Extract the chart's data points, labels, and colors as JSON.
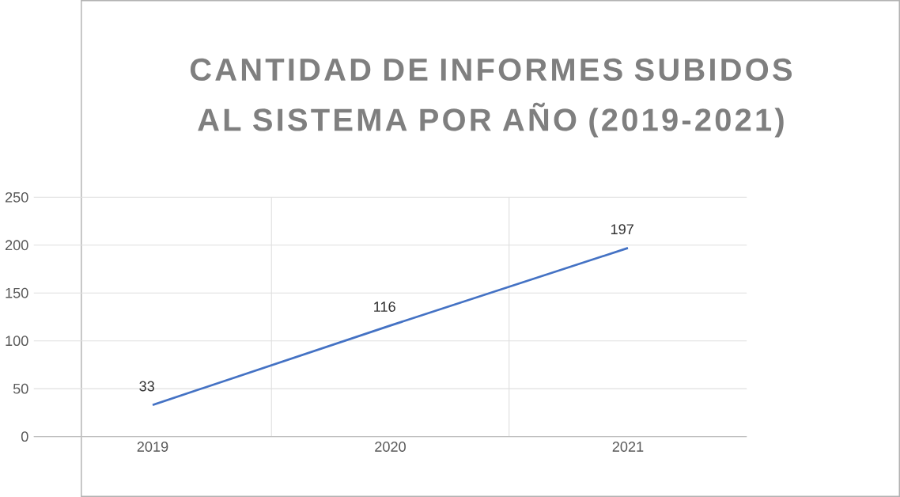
{
  "chart_data": {
    "type": "line",
    "title": "CANTIDAD DE INFORMES SUBIDOS AL SISTEMA POR AÑO (2019-2021)",
    "categories": [
      "2019",
      "2020",
      "2021"
    ],
    "series": [
      {
        "color": "#4472c4",
        "values": [
          33,
          116,
          197
        ]
      }
    ],
    "ylim": [
      0,
      250
    ],
    "yticks": [
      0,
      50,
      100,
      150,
      200,
      250
    ],
    "grid": true,
    "data_labels": true,
    "marker": "none",
    "line_style": "solid"
  }
}
